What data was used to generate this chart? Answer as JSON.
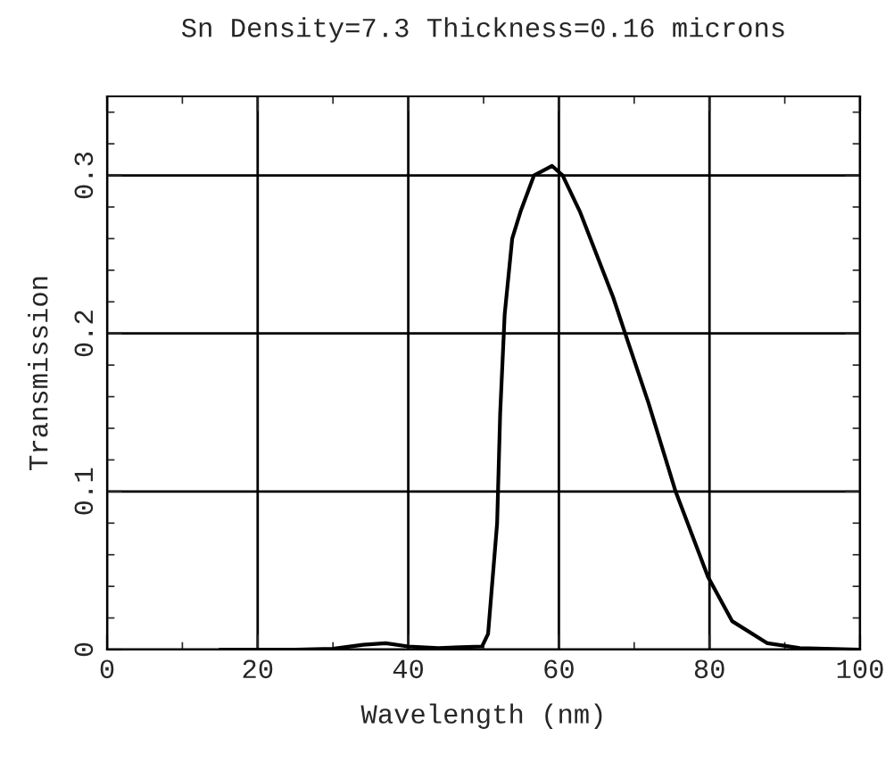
{
  "chart_data": {
    "type": "line",
    "title": "Sn Density=7.3 Thickness=0.16 microns",
    "xlabel": "Wavelength (nm)",
    "ylabel": "Transmission",
    "xlim": [
      0,
      100
    ],
    "ylim": [
      0,
      0.35
    ],
    "xticks": [
      0,
      20,
      40,
      60,
      80,
      100
    ],
    "yticks": [
      {
        "value": 0,
        "label": "0"
      },
      0.1,
      0.2,
      0.3
    ],
    "grid": true,
    "series": [
      {
        "color": "#000000",
        "x": [
          15,
          25,
          30,
          34,
          37,
          40,
          44,
          49.8,
          50.6,
          51.8,
          52.2,
          52.8,
          53.8,
          54.9,
          56.7,
          59.1,
          60.5,
          62.8,
          67.2,
          68.8,
          71.9,
          75.5,
          79.8,
          83,
          87.7,
          92,
          100
        ],
        "values": [
          0,
          0,
          0.0005,
          0.003,
          0.004,
          0.002,
          0.001,
          0.002,
          0.01,
          0.08,
          0.149,
          0.212,
          0.26,
          0.277,
          0.3,
          0.306,
          0.3,
          0.277,
          0.223,
          0.2,
          0.156,
          0.1,
          0.046,
          0.018,
          0.004,
          0.001,
          0
        ]
      }
    ]
  }
}
